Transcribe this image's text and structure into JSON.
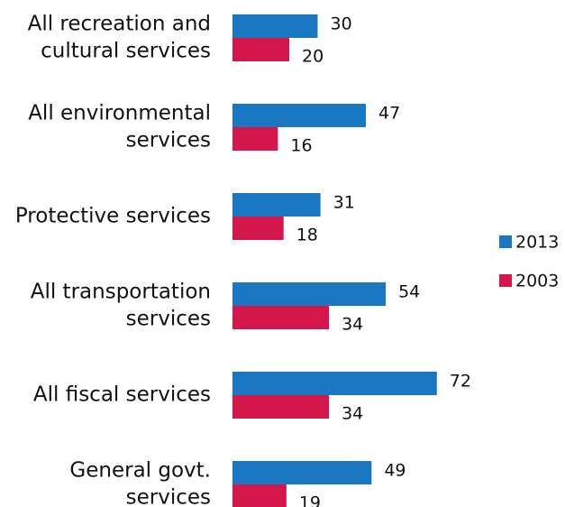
{
  "chart_data": {
    "type": "bar",
    "orientation": "horizontal",
    "categories": [
      [
        "All recreation and",
        "cultural services"
      ],
      [
        "All environmental",
        "services"
      ],
      [
        "Protective services"
      ],
      [
        "All transportation",
        "services"
      ],
      [
        "All fiscal services"
      ],
      [
        "General govt.",
        "services"
      ]
    ],
    "series": [
      {
        "name": "2013",
        "values": [
          30,
          47,
          31,
          54,
          72,
          49
        ],
        "color": "#1a78c2"
      },
      {
        "name": "2003",
        "values": [
          20,
          16,
          18,
          34,
          34,
          19
        ],
        "color": "#d4174a"
      }
    ],
    "grid": false,
    "legend_position": "right"
  }
}
